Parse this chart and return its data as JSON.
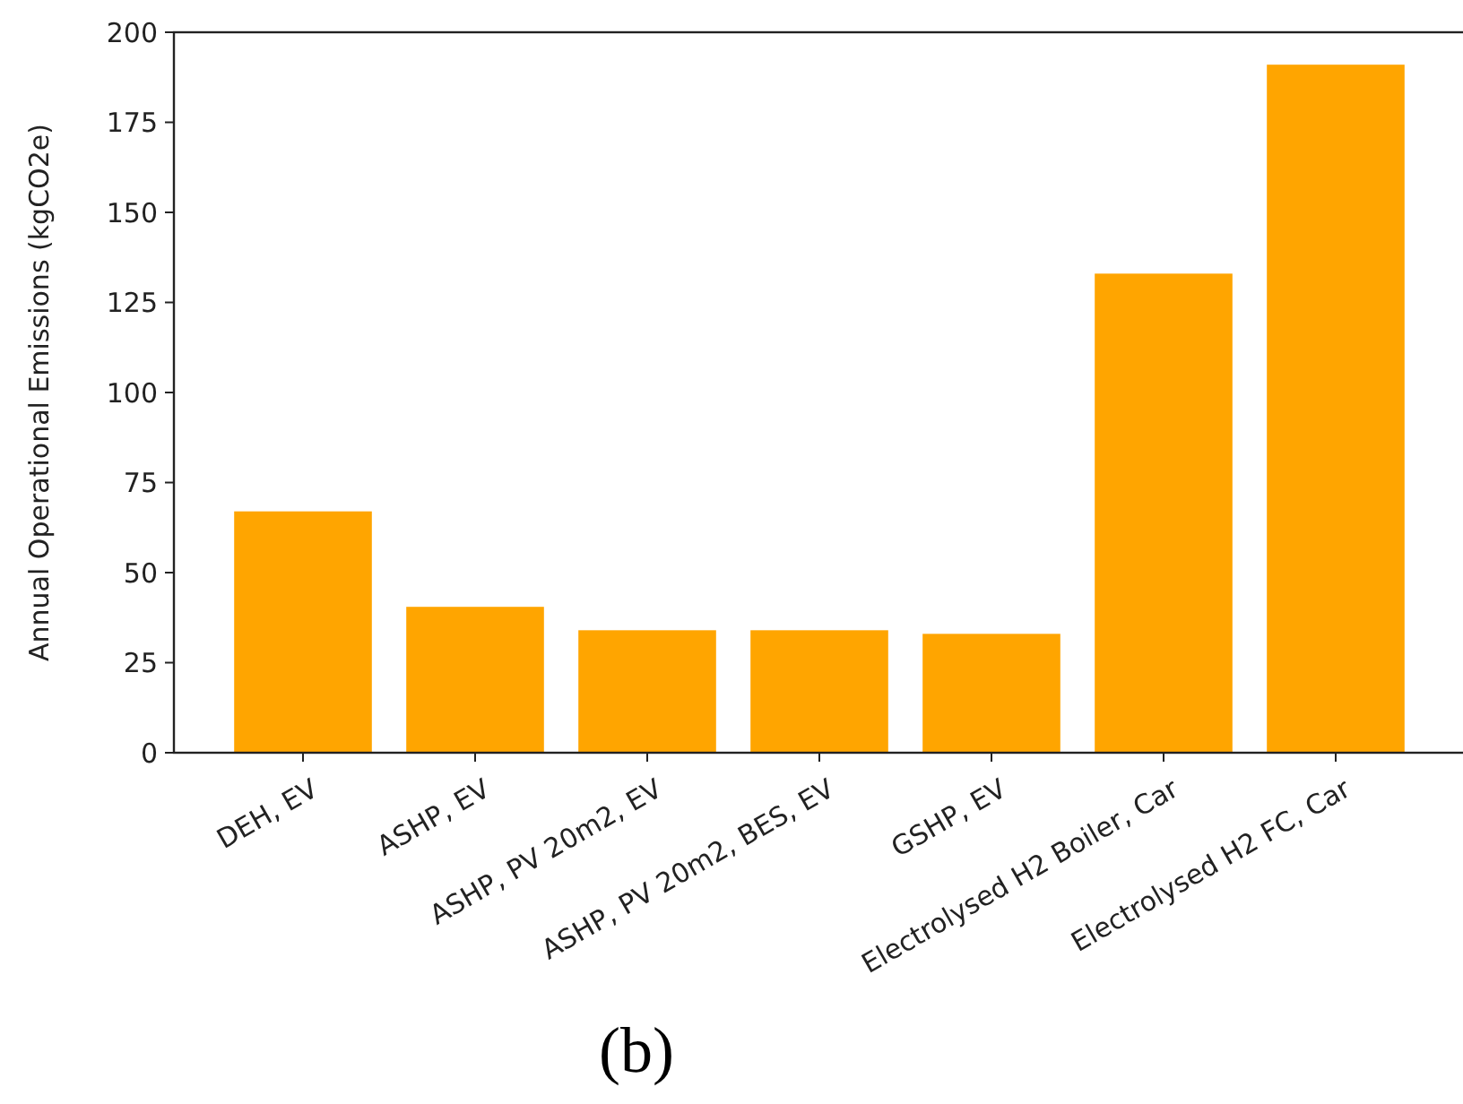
{
  "chart_data": {
    "type": "bar",
    "ylabel": "Annual Operational Emissions (kgCO2e)",
    "categories": [
      "DEH, EV",
      "ASHP, EV",
      "ASHP, PV 20m2, EV",
      "ASHP, PV 20m2, BES, EV",
      "GSHP, EV",
      "Electrolysed H2 Boiler, Car",
      "Electrolysed H2 FC, Car"
    ],
    "values": [
      67,
      40.5,
      34,
      34,
      33,
      133,
      191
    ],
    "color": "#ffa500",
    "ylim": [
      0,
      200
    ],
    "yticks": [
      0,
      25,
      50,
      75,
      100,
      125,
      150,
      175,
      200
    ],
    "grid": false,
    "annotations": [
      "(b)"
    ]
  }
}
